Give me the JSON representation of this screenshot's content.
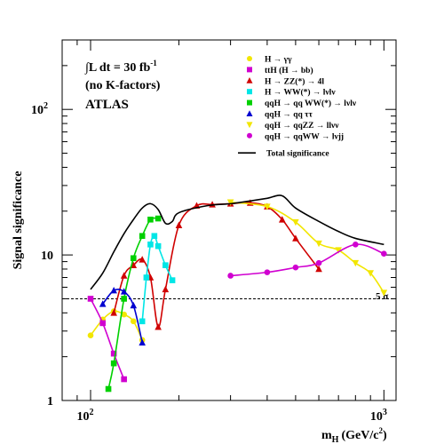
{
  "chart_data": {
    "type": "line",
    "title": "",
    "xlabel": "m",
    "xlabel_sub": "H",
    "xlabel_unit": "(GeV/c",
    "xlabel_unit_sup": "2",
    "xlabel_unit_end": ")",
    "ylabel": "Signal significance",
    "x_scale": "log",
    "y_scale": "log",
    "xlim": [
      80,
      1100
    ],
    "ylim": [
      1,
      300
    ],
    "x_ticks": [
      {
        "value": 100,
        "base": "10",
        "exp": "2"
      },
      {
        "value": 1000,
        "base": "10",
        "exp": "3"
      }
    ],
    "y_ticks": [
      {
        "value": 1,
        "base": "1",
        "exp": ""
      },
      {
        "value": 10,
        "base": "10",
        "exp": ""
      },
      {
        "value": 100,
        "base": "10",
        "exp": "2"
      }
    ],
    "grid": false,
    "legend_position": "top-right",
    "annotations": {
      "lumi": "∫L dt = 30 fb",
      "lumi_sup": "-1",
      "kfactor": "(no K-factors)",
      "experiment": "ATLAS",
      "five_sigma": "5 σ"
    },
    "reference_line": {
      "y": 5,
      "style": "dashed"
    },
    "series": [
      {
        "name": "H → γγ",
        "color": "#f2e600",
        "marker": "circle",
        "x": [
          100,
          110,
          120,
          130,
          140,
          150
        ],
        "y": [
          2.8,
          3.6,
          4.1,
          3.9,
          3.5,
          2.6
        ]
      },
      {
        "name": "ttH (H → bb)",
        "color": "#d000d0",
        "marker": "square",
        "x": [
          100,
          110,
          120,
          130
        ],
        "y": [
          5.0,
          3.4,
          2.1,
          1.4
        ]
      },
      {
        "name": "H → ZZ(*) → 4l",
        "color": "#d00000",
        "marker": "triangle",
        "x": [
          120,
          130,
          140,
          150,
          160,
          170,
          180,
          200,
          230,
          260,
          300,
          350,
          400,
          450,
          500,
          600
        ],
        "y": [
          4.0,
          7.2,
          8.5,
          9.3,
          7.0,
          3.2,
          5.8,
          16.0,
          21.8,
          22.2,
          22.5,
          22.8,
          21.5,
          17.5,
          13.0,
          8.0
        ]
      },
      {
        "name": "H → WW(*) → lνlν",
        "color": "#00e6e6",
        "marker": "square",
        "x": [
          150,
          155,
          160,
          165,
          170,
          180,
          190
        ],
        "y": [
          3.5,
          7.0,
          11.8,
          13.5,
          11.5,
          8.5,
          6.7
        ]
      },
      {
        "name": "qqH → qq WW(*) → lνlν",
        "color": "#00d000",
        "marker": "square",
        "x": [
          115,
          120,
          130,
          140,
          150,
          160,
          170
        ],
        "y": [
          1.2,
          1.8,
          5.0,
          9.5,
          13.5,
          17.5,
          17.8
        ]
      },
      {
        "name": "qqH → qq ττ",
        "color": "#0000d0",
        "marker": "triangle",
        "x": [
          110,
          120,
          130,
          140,
          150
        ],
        "y": [
          4.6,
          5.7,
          5.6,
          4.5,
          2.5
        ]
      },
      {
        "name": "qqH → qqZZ → llνν",
        "color": "#f2e600",
        "marker": "triangle-down",
        "x": [
          300,
          400,
          500,
          600,
          700,
          800,
          900,
          1000
        ],
        "y": [
          23.0,
          21.5,
          16.8,
          12.0,
          10.8,
          8.8,
          7.5,
          5.5
        ]
      },
      {
        "name": "qqH → qqWW → lνjj",
        "color": "#d000d0",
        "marker": "circle",
        "x": [
          300,
          400,
          500,
          600,
          800,
          1000
        ],
        "y": [
          7.2,
          7.6,
          8.2,
          8.8,
          11.8,
          10.2
        ]
      },
      {
        "name": "Total significance",
        "color": "#000000",
        "marker": "none",
        "x": [
          100,
          110,
          120,
          130,
          140,
          150,
          160,
          170,
          180,
          190,
          200,
          250,
          300,
          350,
          400,
          450,
          500,
          600,
          700,
          800,
          1000
        ],
        "y": [
          5.8,
          7.5,
          10.5,
          14.0,
          17.5,
          21.0,
          22.5,
          20.5,
          16.5,
          17.0,
          19.5,
          21.8,
          22.5,
          23.5,
          24.5,
          25.5,
          21.0,
          17.0,
          14.5,
          13.0,
          11.8
        ]
      }
    ]
  }
}
